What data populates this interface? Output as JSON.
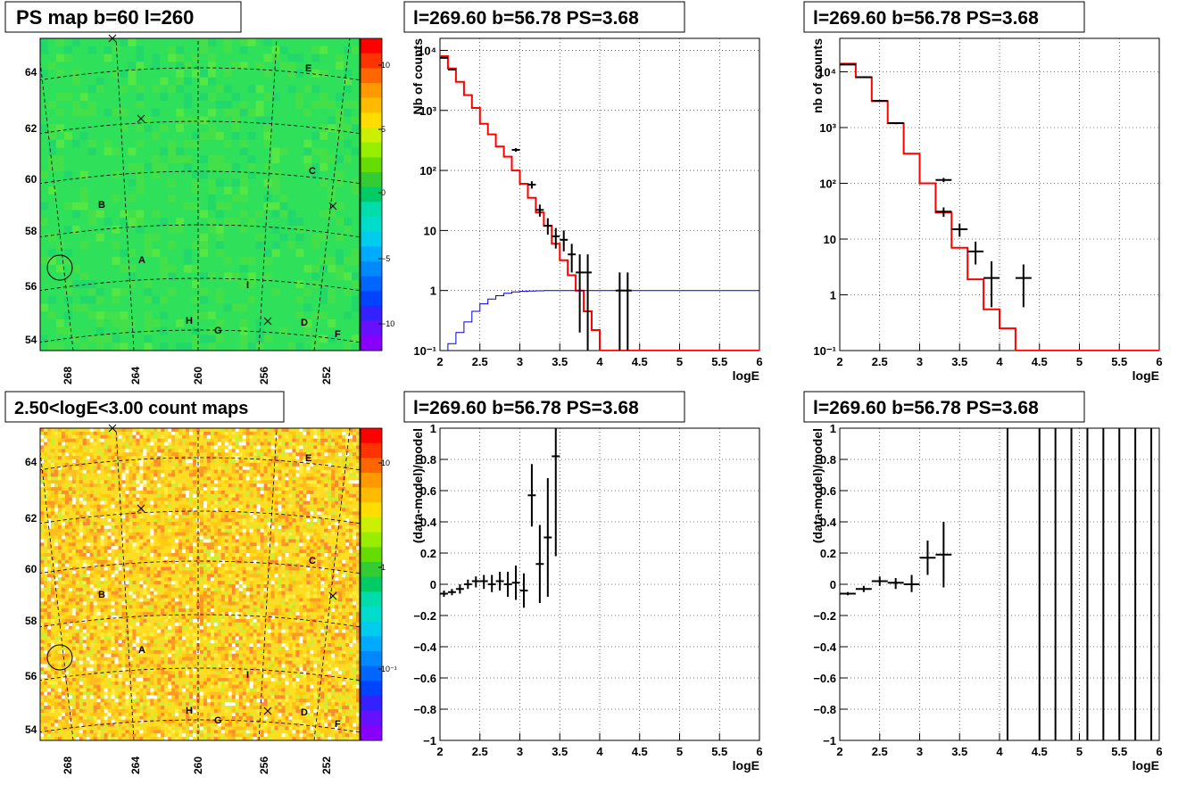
{
  "panels": {
    "ps_map": {
      "title": "PS map b=60 l=260",
      "lon_ticks": [
        "268",
        "264",
        "260",
        "256",
        "252"
      ],
      "lat_ticks": [
        "64",
        "62",
        "60",
        "58",
        "56",
        "54"
      ],
      "colorbar_ticks": [
        "10",
        "5",
        "0",
        "−5",
        "−10"
      ],
      "colorbar_colors": [
        "#ff0000",
        "#ff3300",
        "#ff6600",
        "#ff9900",
        "#ffbb00",
        "#ffdd00",
        "#ccee00",
        "#99ee00",
        "#66dd00",
        "#33cc33",
        "#00cc66",
        "#00ddaa",
        "#00ddcc",
        "#00ccee",
        "#00aaff",
        "#0088ff",
        "#0066ff",
        "#0044ff",
        "#3322ff",
        "#6611ff",
        "#8800ff"
      ],
      "base_color": "#2ee05a",
      "source_labels": [
        "E",
        "C",
        "B",
        "A",
        "I",
        "H",
        "G",
        "D",
        "F"
      ]
    },
    "count_map": {
      "title": "2.50<logE<3.00 count maps",
      "lon_ticks": [
        "268",
        "264",
        "260",
        "256",
        "252"
      ],
      "lat_ticks": [
        "64",
        "62",
        "60",
        "58",
        "56",
        "54"
      ],
      "colorbar_ticks": [
        "10",
        "1",
        "10⁻¹"
      ],
      "colorbar_colors": [
        "#ff0000",
        "#ff3300",
        "#ff6600",
        "#ff9900",
        "#ffbb00",
        "#ffdd00",
        "#ccee00",
        "#99ee00",
        "#66dd00",
        "#33cc33",
        "#00cc66",
        "#00ddaa",
        "#00ddcc",
        "#00ccee",
        "#00aaff",
        "#0088ff",
        "#0066ff",
        "#0044ff",
        "#3322ff",
        "#6611ff",
        "#8800ff"
      ],
      "source_labels": [
        "E",
        "C",
        "B",
        "A",
        "I",
        "H",
        "G",
        "D",
        "F"
      ]
    }
  },
  "chart_data": [
    {
      "type": "line",
      "title": "l=269.60 b=56.78 PS=3.68",
      "xlabel": "logE",
      "ylabel": "Nb of counts",
      "xlim": [
        2,
        6
      ],
      "ylim_log10": [
        -1,
        4.2
      ],
      "ylog": true,
      "grid": true,
      "xticks": [
        "2",
        "2.5",
        "3",
        "3.5",
        "4",
        "4.5",
        "5",
        "5.5",
        "6"
      ],
      "yticks": [
        "10⁻¹",
        "1",
        "10",
        "10²",
        "10³",
        "10⁴"
      ],
      "bin_edges": [
        2.0,
        2.1,
        2.2,
        2.3,
        2.4,
        2.5,
        2.6,
        2.7,
        2.8,
        2.9,
        3.0,
        3.1,
        3.2,
        3.3,
        3.4,
        3.5,
        3.6,
        3.7,
        3.8,
        3.9,
        4.0,
        4.1,
        4.2,
        4.3,
        4.4,
        4.5,
        4.6,
        4.7,
        4.8,
        4.9,
        5.0,
        5.1,
        5.2,
        5.3,
        5.4,
        5.5,
        5.6,
        5.7,
        5.8,
        5.9,
        6.0
      ],
      "series": [
        {
          "name": "",
          "color": "#ff0000",
          "values": [
            8000,
            5000,
            3000,
            1800,
            1100,
            600,
            400,
            250,
            170,
            100,
            60,
            35,
            20,
            12,
            6,
            3.2,
            1.8,
            1.0,
            0.45,
            0.22,
            0.1,
            0.1,
            0.1,
            0.1,
            0.1,
            0.1,
            0.1,
            0.1,
            0.1,
            0.1,
            0.1,
            0.1,
            0.1,
            0.1,
            0.1,
            0.1,
            0.1,
            0.1,
            0.1,
            0.1
          ]
        },
        {
          "name": "",
          "color": "#0000cc",
          "values": [
            0.08,
            0.13,
            0.2,
            0.3,
            0.45,
            0.6,
            0.72,
            0.82,
            0.9,
            0.95,
            0.97,
            0.98,
            0.99,
            1,
            1,
            1,
            1,
            1,
            1,
            1,
            1,
            1,
            1,
            1,
            1,
            1,
            1,
            1,
            1,
            1,
            1,
            1,
            1,
            1,
            1,
            1,
            1,
            1,
            1,
            1
          ]
        }
      ],
      "points": [
        {
          "x": 2.05,
          "y": 7500,
          "lo": 7300,
          "hi": 7700,
          "xerr": 0.05
        },
        {
          "x": 2.15,
          "y": 4800,
          "lo": 4650,
          "hi": 4950,
          "xerr": 0.05
        },
        {
          "x": 2.95,
          "y": 220,
          "lo": 205,
          "hi": 235,
          "xerr": 0.05
        },
        {
          "x": 3.15,
          "y": 58,
          "lo": 50,
          "hi": 66,
          "xerr": 0.05
        },
        {
          "x": 3.25,
          "y": 22,
          "lo": 17,
          "hi": 27,
          "xerr": 0.05
        },
        {
          "x": 3.35,
          "y": 12,
          "lo": 8.5,
          "hi": 16,
          "xerr": 0.05
        },
        {
          "x": 3.45,
          "y": 8,
          "lo": 5,
          "hi": 11,
          "xerr": 0.05
        },
        {
          "x": 3.55,
          "y": 7,
          "lo": 4.5,
          "hi": 10,
          "xerr": 0.05
        },
        {
          "x": 3.65,
          "y": 4,
          "lo": 2,
          "hi": 6,
          "xerr": 0.05
        },
        {
          "x": 3.75,
          "y": 2,
          "lo": 0.2,
          "hi": 4,
          "xerr": 0.05
        },
        {
          "x": 3.85,
          "y": 2,
          "lo": 0.07,
          "hi": 4,
          "xerr": 0.05
        },
        {
          "x": 4.25,
          "y": 1,
          "lo": 0.05,
          "hi": 2,
          "xerr": 0.05
        },
        {
          "x": 4.35,
          "y": 1,
          "lo": 0.05,
          "hi": 2,
          "xerr": 0.05
        }
      ]
    },
    {
      "type": "line",
      "title": "l=269.60 b=56.78 PS=3.68",
      "xlabel": "logE",
      "ylabel": "nb of counts",
      "xlim": [
        2,
        6
      ],
      "ylim_log10": [
        -1,
        4.6
      ],
      "ylog": true,
      "grid": true,
      "xticks": [
        "2",
        "2.5",
        "3",
        "3.5",
        "4",
        "4.5",
        "5",
        "5.5",
        "6"
      ],
      "yticks": [
        "10⁻¹",
        "1",
        "10",
        "10²",
        "10³",
        "10⁴"
      ],
      "bin_edges": [
        2.0,
        2.2,
        2.4,
        2.6,
        2.8,
        3.0,
        3.2,
        3.4,
        3.6,
        3.8,
        4.0,
        4.2,
        4.4,
        4.6,
        4.8,
        5.0,
        5.2,
        5.4,
        5.6,
        5.8,
        6.0
      ],
      "series": [
        {
          "name": "",
          "color": "#ff0000",
          "values": [
            14000,
            8000,
            3000,
            1200,
            340,
            100,
            30,
            7,
            1.9,
            0.55,
            0.25,
            0.1,
            0.1,
            0.1,
            0.1,
            0.1,
            0.1,
            0.1,
            0.1,
            0.1
          ]
        }
      ],
      "points": [
        {
          "x": 2.1,
          "y": 13500,
          "lo": 13200,
          "hi": 13800,
          "xerr": 0.1
        },
        {
          "x": 2.3,
          "y": 8000,
          "lo": 7800,
          "hi": 8200,
          "xerr": 0.1
        },
        {
          "x": 2.5,
          "y": 3000,
          "lo": 2900,
          "hi": 3100,
          "xerr": 0.1
        },
        {
          "x": 2.7,
          "y": 1200,
          "lo": 1150,
          "hi": 1250,
          "xerr": 0.1
        },
        {
          "x": 3.3,
          "y": 115,
          "lo": 105,
          "hi": 125,
          "xerr": 0.1
        },
        {
          "x": 3.3,
          "y": 31,
          "lo": 25,
          "hi": 37,
          "xerr": 0.1
        },
        {
          "x": 3.5,
          "y": 15,
          "lo": 11,
          "hi": 19,
          "xerr": 0.1
        },
        {
          "x": 3.7,
          "y": 6,
          "lo": 3.5,
          "hi": 9,
          "xerr": 0.1
        },
        {
          "x": 3.9,
          "y": 2,
          "lo": 0.6,
          "hi": 4,
          "xerr": 0.1
        },
        {
          "x": 4.3,
          "y": 2,
          "lo": 0.6,
          "hi": 3.5,
          "xerr": 0.1
        }
      ]
    },
    {
      "type": "scatter",
      "title": "l=269.60 b=56.78 PS=3.68",
      "xlabel": "logE",
      "ylabel": "(data-model)/model",
      "xlim": [
        2,
        6
      ],
      "ylim": [
        -1,
        1
      ],
      "grid": true,
      "xticks": [
        "2",
        "2.5",
        "3",
        "3.5",
        "4",
        "4.5",
        "5",
        "5.5",
        "6"
      ],
      "yticks": [
        "−1",
        "−0.8",
        "−0.6",
        "−0.4",
        "−0.2",
        "0",
        "0.2",
        "0.4",
        "0.6",
        "0.8",
        "1"
      ],
      "points": [
        {
          "x": 2.05,
          "y": -0.06,
          "lo": -0.08,
          "hi": -0.04,
          "xerr": 0.05
        },
        {
          "x": 2.15,
          "y": -0.05,
          "lo": -0.07,
          "hi": -0.03,
          "xerr": 0.05
        },
        {
          "x": 2.25,
          "y": -0.03,
          "lo": -0.06,
          "hi": 0.0,
          "xerr": 0.05
        },
        {
          "x": 2.35,
          "y": 0.0,
          "lo": -0.03,
          "hi": 0.03,
          "xerr": 0.05
        },
        {
          "x": 2.45,
          "y": 0.02,
          "lo": -0.02,
          "hi": 0.05,
          "xerr": 0.05
        },
        {
          "x": 2.55,
          "y": 0.02,
          "lo": -0.03,
          "hi": 0.06,
          "xerr": 0.05
        },
        {
          "x": 2.65,
          "y": 0.0,
          "lo": -0.05,
          "hi": 0.06,
          "xerr": 0.05
        },
        {
          "x": 2.75,
          "y": 0.02,
          "lo": -0.04,
          "hi": 0.08,
          "xerr": 0.05
        },
        {
          "x": 2.85,
          "y": 0.0,
          "lo": -0.08,
          "hi": 0.08,
          "xerr": 0.05
        },
        {
          "x": 2.95,
          "y": 0.01,
          "lo": -0.1,
          "hi": 0.12,
          "xerr": 0.05
        },
        {
          "x": 3.05,
          "y": -0.04,
          "lo": -0.15,
          "hi": 0.07,
          "xerr": 0.05
        },
        {
          "x": 3.15,
          "y": 0.57,
          "lo": 0.37,
          "hi": 0.77,
          "xerr": 0.05
        },
        {
          "x": 3.25,
          "y": 0.13,
          "lo": -0.12,
          "hi": 0.38,
          "xerr": 0.05
        },
        {
          "x": 3.35,
          "y": 0.3,
          "lo": -0.08,
          "hi": 0.68,
          "xerr": 0.05
        },
        {
          "x": 3.45,
          "y": 0.82,
          "lo": 0.18,
          "hi": 1.0,
          "xerr": 0.05
        }
      ]
    },
    {
      "type": "scatter",
      "title": "l=269.60 b=56.78 PS=3.68",
      "xlabel": "logE",
      "ylabel": "(data-model)/model",
      "xlim": [
        2,
        6
      ],
      "ylim": [
        -1,
        1
      ],
      "grid": true,
      "xticks": [
        "2",
        "2.5",
        "3",
        "3.5",
        "4",
        "4.5",
        "5",
        "5.5",
        "6"
      ],
      "yticks": [
        "−1",
        "−0.8",
        "−0.6",
        "−0.4",
        "−0.2",
        "0",
        "0.2",
        "0.4",
        "0.6",
        "0.8",
        "1"
      ],
      "points": [
        {
          "x": 2.1,
          "y": -0.06,
          "lo": -0.07,
          "hi": -0.05,
          "xerr": 0.1
        },
        {
          "x": 2.3,
          "y": -0.03,
          "lo": -0.05,
          "hi": -0.01,
          "xerr": 0.1
        },
        {
          "x": 2.5,
          "y": 0.02,
          "lo": -0.01,
          "hi": 0.05,
          "xerr": 0.1
        },
        {
          "x": 2.7,
          "y": 0.01,
          "lo": -0.03,
          "hi": 0.04,
          "xerr": 0.1
        },
        {
          "x": 2.9,
          "y": 0.0,
          "lo": -0.05,
          "hi": 0.06,
          "xerr": 0.1
        },
        {
          "x": 3.1,
          "y": 0.17,
          "lo": 0.06,
          "hi": 0.28,
          "xerr": 0.1
        },
        {
          "x": 3.3,
          "y": 0.19,
          "lo": -0.02,
          "hi": 0.4,
          "xerr": 0.1
        },
        {
          "x": 4.1,
          "y": 0,
          "lo": -1,
          "hi": 1,
          "xerr": 0
        },
        {
          "x": 4.5,
          "y": 0,
          "lo": -1,
          "hi": 1,
          "xerr": 0
        },
        {
          "x": 4.7,
          "y": 0,
          "lo": -1,
          "hi": 1,
          "xerr": 0
        },
        {
          "x": 4.9,
          "y": 0,
          "lo": -1,
          "hi": 1,
          "xerr": 0
        },
        {
          "x": 5.1,
          "y": 0,
          "lo": -1,
          "hi": 1,
          "xerr": 0
        },
        {
          "x": 5.3,
          "y": 0,
          "lo": -1,
          "hi": 1,
          "xerr": 0
        },
        {
          "x": 5.5,
          "y": 0,
          "lo": -1,
          "hi": 1,
          "xerr": 0
        },
        {
          "x": 5.7,
          "y": 0,
          "lo": -1,
          "hi": 1,
          "xerr": 0
        },
        {
          "x": 5.9,
          "y": 0,
          "lo": -1,
          "hi": 1,
          "xerr": 0
        }
      ]
    }
  ]
}
